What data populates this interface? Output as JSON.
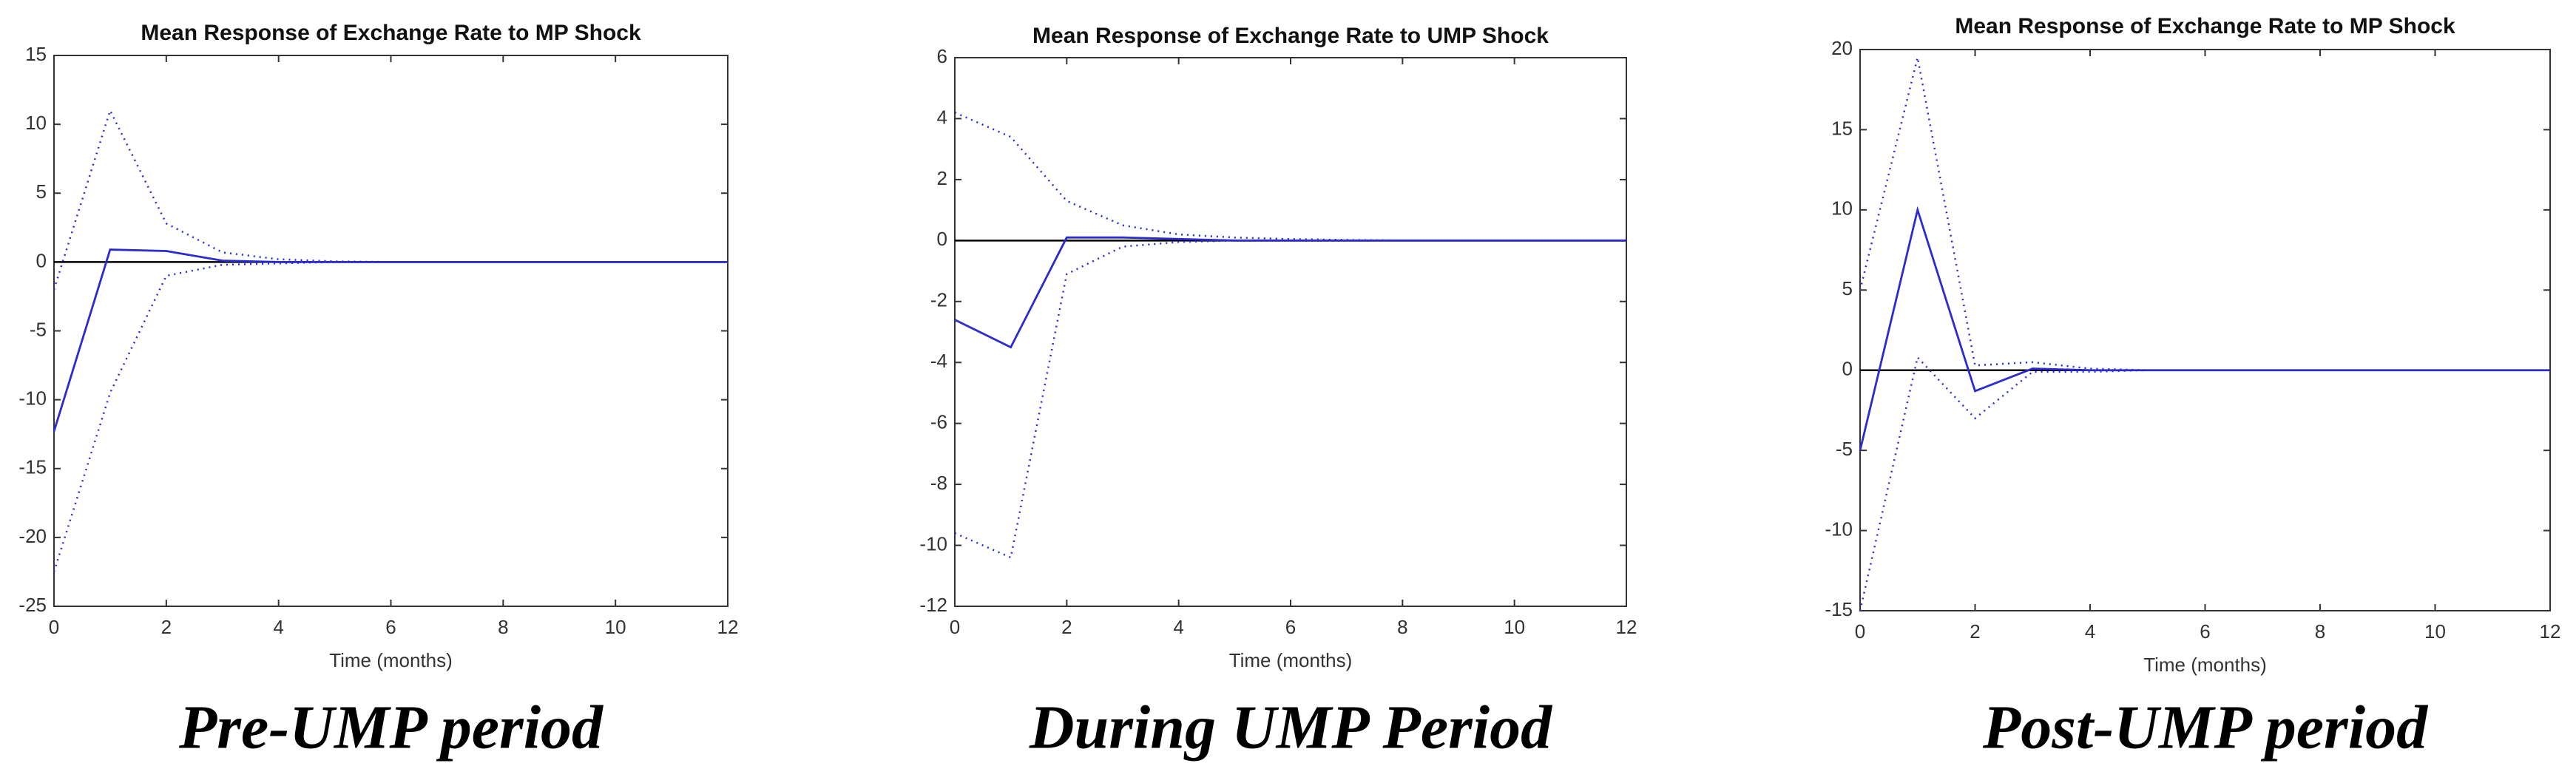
{
  "chart_data": [
    {
      "type": "line",
      "title": "Mean Response of Exchange Rate to MP Shock",
      "x_label": "Time (months)",
      "caption": "Pre-UMP period",
      "x": [
        0,
        1,
        2,
        3,
        4,
        5,
        6,
        7,
        8,
        9,
        10,
        11,
        12
      ],
      "xlim": [
        0,
        12
      ],
      "xticks": [
        0,
        2,
        4,
        6,
        8,
        10,
        12
      ],
      "ylim": [
        -25,
        15
      ],
      "yticks": [
        -25,
        -20,
        -15,
        -10,
        -5,
        0,
        5,
        10,
        15
      ],
      "series": [
        {
          "color": "#2b2bd0",
          "style": "solid",
          "values": [
            -12.3,
            0.9,
            0.8,
            0.1,
            0,
            0,
            0,
            0,
            0,
            0,
            0,
            0,
            0
          ]
        },
        {
          "color": "#2b2bd0",
          "style": "dotted",
          "values": [
            -2,
            11,
            2.8,
            0.7,
            0.2,
            0.05,
            0,
            0,
            0,
            0,
            0,
            0,
            0
          ]
        },
        {
          "color": "#2b2bd0",
          "style": "dotted",
          "values": [
            -22.5,
            -9.5,
            -1,
            -0.2,
            -0.1,
            0,
            0,
            0,
            0,
            0,
            0,
            0,
            0
          ]
        }
      ]
    },
    {
      "type": "line",
      "title": "Mean Response of Exchange Rate to UMP Shock",
      "x_label": "Time (months)",
      "caption": "During UMP Period",
      "x": [
        0,
        1,
        2,
        3,
        4,
        5,
        6,
        7,
        8,
        9,
        10,
        11,
        12
      ],
      "xlim": [
        0,
        12
      ],
      "xticks": [
        0,
        2,
        4,
        6,
        8,
        10,
        12
      ],
      "ylim": [
        -12,
        6
      ],
      "yticks": [
        -12,
        -10,
        -8,
        -6,
        -4,
        -2,
        0,
        2,
        4,
        6
      ],
      "series": [
        {
          "color": "#2b2bd0",
          "style": "solid",
          "values": [
            -2.6,
            -3.5,
            0.1,
            0.1,
            0.05,
            0,
            0,
            0,
            0,
            0,
            0,
            0,
            0
          ]
        },
        {
          "color": "#2b2bd0",
          "style": "dotted",
          "values": [
            4.2,
            3.4,
            1.3,
            0.5,
            0.2,
            0.1,
            0.05,
            0.02,
            0,
            0,
            0,
            0,
            0
          ]
        },
        {
          "color": "#2b2bd0",
          "style": "dotted",
          "values": [
            -9.6,
            -10.4,
            -1.1,
            -0.2,
            -0.05,
            0,
            0,
            0,
            0,
            0,
            0,
            0,
            0
          ]
        }
      ]
    },
    {
      "type": "line",
      "title": "Mean Response of Exchange Rate to MP Shock",
      "x_label": "Time (months)",
      "caption": "Post-UMP period",
      "x": [
        0,
        1,
        2,
        3,
        4,
        5,
        6,
        7,
        8,
        9,
        10,
        11,
        12
      ],
      "xlim": [
        0,
        12
      ],
      "xticks": [
        0,
        2,
        4,
        6,
        8,
        10,
        12
      ],
      "ylim": [
        -15,
        20
      ],
      "yticks": [
        -15,
        -10,
        -5,
        0,
        5,
        10,
        15,
        20
      ],
      "series": [
        {
          "color": "#2b2bd0",
          "style": "solid",
          "values": [
            -5,
            10,
            -1.3,
            0.1,
            0,
            0,
            0,
            0,
            0,
            0,
            0,
            0,
            0
          ]
        },
        {
          "color": "#2b2bd0",
          "style": "dotted",
          "values": [
            5,
            19.5,
            0.3,
            0.5,
            0.1,
            0,
            0,
            0,
            0,
            0,
            0,
            0,
            0
          ]
        },
        {
          "color": "#2b2bd0",
          "style": "dotted",
          "values": [
            -15,
            0.8,
            -3,
            -0.1,
            -0.1,
            0,
            0,
            0,
            0,
            0,
            0,
            0,
            0
          ]
        }
      ]
    }
  ]
}
